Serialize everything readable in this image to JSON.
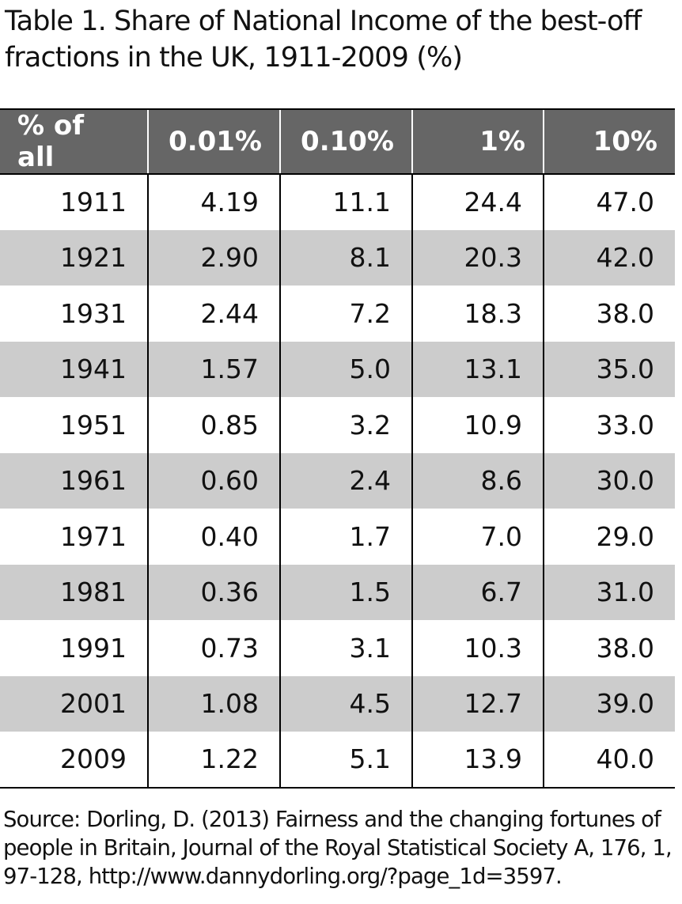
{
  "title": "Table 1. Share of National Income of the best-off fractions in the UK, 1911-2009 (%)",
  "table": {
    "headers": [
      "% of all",
      "0.01%",
      "0.10%",
      "1%",
      "10%"
    ],
    "rows": [
      [
        "1911",
        "4.19",
        "11.1",
        "24.4",
        "47.0"
      ],
      [
        "1921",
        "2.90",
        "8.1",
        "20.3",
        "42.0"
      ],
      [
        "1931",
        "2.44",
        "7.2",
        "18.3",
        "38.0"
      ],
      [
        "1941",
        "1.57",
        "5.0",
        "13.1",
        "35.0"
      ],
      [
        "1951",
        "0.85",
        "3.2",
        "10.9",
        "33.0"
      ],
      [
        "1961",
        "0.60",
        "2.4",
        "8.6",
        "30.0"
      ],
      [
        "1971",
        "0.40",
        "1.7",
        "7.0",
        "29.0"
      ],
      [
        "1981",
        "0.36",
        "1.5",
        "6.7",
        "31.0"
      ],
      [
        "1991",
        "0.73",
        "3.1",
        "10.3",
        "38.0"
      ],
      [
        "2001",
        "1.08",
        "4.5",
        "12.7",
        "39.0"
      ],
      [
        "2009",
        "1.22",
        "5.1",
        "13.9",
        "40.0"
      ]
    ]
  },
  "source": "Source: Dorling, D. (2013) Fairness and the changing fortunes of people in Britain, Journal of the Royal Statistical Society A, 176, 1, 97-128, http://www.dannydorling.org/?page_1d=3597.",
  "colors": {
    "header_bg": "#666666",
    "header_text": "#ffffff",
    "stripe": "#cccccc"
  }
}
